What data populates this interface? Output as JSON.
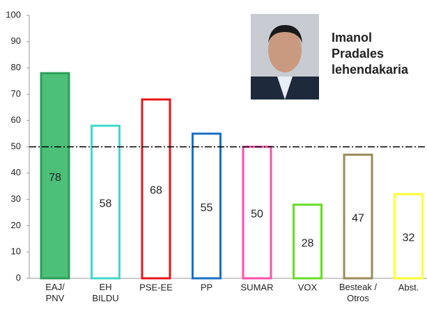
{
  "chart_data": {
    "type": "bar",
    "categories": [
      "EAJ/\nPNV",
      "EH\nBILDU",
      "PSE-EE",
      "PP",
      "SUMAR",
      "VOX",
      "Besteak /\nOtros",
      "Abst."
    ],
    "values": [
      78,
      58,
      68,
      55,
      50,
      28,
      47,
      32
    ],
    "colors": [
      "#2e9e5a",
      "#3dd9c8",
      "#e8141b",
      "#1a6fc4",
      "#ff4fa8",
      "#66dd22",
      "#9b8a5a",
      "#ffff33"
    ],
    "fills": [
      "#4cbf78",
      "#ffffff",
      "#ffffff",
      "#ffffff",
      "#ffffff",
      "#ffffff",
      "#ffffff",
      "#ffffff"
    ],
    "ylim": [
      0,
      100
    ],
    "yticks": [
      0,
      10,
      20,
      30,
      40,
      50,
      60,
      70,
      80,
      90,
      100
    ],
    "reference_line": 50,
    "annotation": "Imanol\nPradales\nlehendakaria"
  }
}
